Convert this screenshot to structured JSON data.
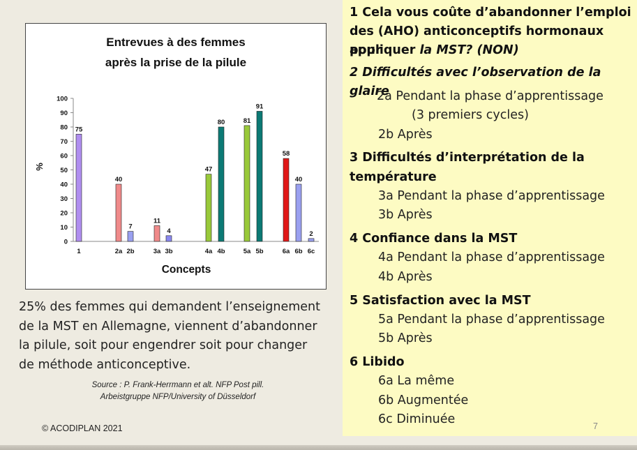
{
  "chart_data": {
    "type": "bar",
    "title": "Entrevues à des femmes",
    "subtitle": "après la prise de la pilule",
    "xlabel": "Concepts",
    "ylabel": "%",
    "ylim": [
      0,
      100
    ],
    "yticks": [
      "0",
      "10",
      "20",
      "30",
      "40",
      "50",
      "60",
      "70",
      "80",
      "90",
      "100"
    ],
    "bars": [
      {
        "label": "1",
        "value": 75,
        "color": "#b08ef0"
      },
      {
        "label": "2a",
        "value": 40,
        "color": "#f08a8a"
      },
      {
        "label": "2b",
        "value": 7,
        "color": "#9aa0f0"
      },
      {
        "label": "3a",
        "value": 11,
        "color": "#f08a8a"
      },
      {
        "label": "3b",
        "value": 4,
        "color": "#8a88f0"
      },
      {
        "label": "4a",
        "value": 47,
        "color": "#99c93a"
      },
      {
        "label": "4b",
        "value": 80,
        "color": "#0c7a75"
      },
      {
        "label": "5a",
        "value": 81,
        "color": "#99c93a"
      },
      {
        "label": "5b",
        "value": 91,
        "color": "#0c7a75"
      },
      {
        "label": "6a",
        "value": 58,
        "color": "#e01818"
      },
      {
        "label": "6b",
        "value": 40,
        "color": "#9aa0f0"
      },
      {
        "label": "6c",
        "value": 2,
        "color": "#9aa0f0"
      }
    ]
  },
  "left_text": "25% des femmes qui demandent l’enseignement de la MST en Allemagne, viennent d’abandonner la pilule, soit pour engendrer soit pour changer de méthode anticonceptive.",
  "source": {
    "line1": "Source : P. Frank-Herrmann et alt. NFP Post pill.",
    "line2": "Arbeistgruppe NFP/University of Düsseldorf"
  },
  "copyright": "© ACODIPLAN 2021",
  "page_number": "7",
  "panel": {
    "q1_line1": "1  Cela vous coûte d’abandonner l’emploi",
    "q1_line2": "des (AHO) anticonceptifs  hormonaux pour",
    "q1_line3a": "appliquer ",
    "q1_line3b": "la MST?  (NON)",
    "q2": "2 Difficultés avec l’observation de la glaire",
    "q2a_1": "2a Pendant la phase d’apprentissage",
    "q2a_2": "(3 premiers cycles)",
    "q2b": "2b Après",
    "q3_line1": "3 Difficultés d’interprétation de la",
    "q3_line2": "température",
    "q3a": "3a Pendant la phase d’apprentissage",
    "q3b": "3b Après",
    "q4": "4 Confiance dans la MST",
    "q4a": "4a Pendant la phase d’apprentissage",
    "q4b": "4b Après",
    "q5": "5 Satisfaction avec la MST",
    "q5a": "5a Pendant la phase d’apprentissage",
    "q5b": "5b Après",
    "q6": "6 Libido",
    "q6a": "6a La même",
    "q6b": "6b Augmentée",
    "q6c": "6c Diminuée"
  }
}
